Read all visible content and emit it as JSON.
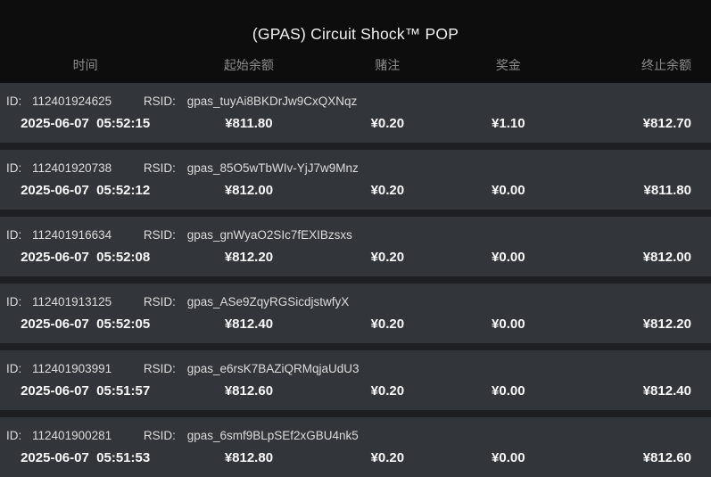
{
  "header": {
    "title": "(GPAS) Circuit Shock™ POP"
  },
  "table": {
    "headers": [
      "时间",
      "起始余额",
      "赌注",
      "奖金",
      "终止余额"
    ],
    "labels": {
      "id": "ID:",
      "rsid": "RSID:"
    },
    "rows": [
      {
        "id": "112401924625",
        "rsid": "gpas_tuyAi8BKDrJw9CxQXNqz",
        "time": "2025-06-07  05:52:15",
        "start_balance": "¥811.80",
        "bet": "¥0.20",
        "prize": "¥1.10",
        "end_balance": "¥812.70"
      },
      {
        "id": "112401920738",
        "rsid": "gpas_85O5wTbWIv-YjJ7w9Mnz",
        "time": "2025-06-07  05:52:12",
        "start_balance": "¥812.00",
        "bet": "¥0.20",
        "prize": "¥0.00",
        "end_balance": "¥811.80"
      },
      {
        "id": "112401916634",
        "rsid": "gpas_gnWyaO2SIc7fEXIBzsxs",
        "time": "2025-06-07  05:52:08",
        "start_balance": "¥812.20",
        "bet": "¥0.20",
        "prize": "¥0.00",
        "end_balance": "¥812.00"
      },
      {
        "id": "112401913125",
        "rsid": "gpas_ASe9ZqyRGSicdjstwfyX",
        "time": "2025-06-07  05:52:05",
        "start_balance": "¥812.40",
        "bet": "¥0.20",
        "prize": "¥0.00",
        "end_balance": "¥812.20"
      },
      {
        "id": "112401903991",
        "rsid": "gpas_e6rsK7BAZiQRMqjaUdU3",
        "time": "2025-06-07  05:51:57",
        "start_balance": "¥812.60",
        "bet": "¥0.20",
        "prize": "¥0.00",
        "end_balance": "¥812.40"
      },
      {
        "id": "112401900281",
        "rsid": "gpas_6smf9BLpSEf2xGBU4nk5",
        "time": "2025-06-07  05:51:53",
        "start_balance": "¥812.80",
        "bet": "¥0.20",
        "prize": "¥0.00",
        "end_balance": "¥812.60"
      }
    ]
  },
  "colors": {
    "page_background": "#0d0d0d",
    "row_background": "#323539",
    "row_gap": "#1d1f22",
    "header_text": "#8d8d8d",
    "primary_text": "#f8f8f8",
    "secondary_text": "#dcdcdc"
  }
}
